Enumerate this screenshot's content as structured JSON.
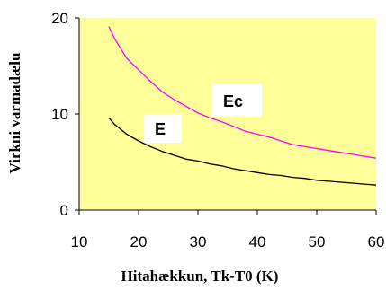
{
  "chart_data": {
    "type": "line",
    "title": "",
    "xlabel": "Hitahækkun, Tk-T0 (K)",
    "ylabel": "Virkni varmadælu",
    "xlim": [
      10,
      60
    ],
    "ylim": [
      0,
      20
    ],
    "xticks": [
      "10",
      "20",
      "30",
      "40",
      "50",
      "60"
    ],
    "yticks": [
      "0",
      "10",
      "20"
    ],
    "grid": false,
    "legend": "none",
    "colors": {
      "plot_background": "#ffff99",
      "label_box": "#ffffff"
    },
    "series": [
      {
        "name": "Ec",
        "color": "#ff00ff",
        "x": [
          15,
          16,
          18,
          20,
          22,
          24,
          26,
          28,
          30,
          32,
          34,
          36,
          38,
          40,
          42,
          44,
          46,
          48,
          50,
          52,
          54,
          56,
          58,
          60
        ],
        "y": [
          19.1,
          17.8,
          15.8,
          14.6,
          13.4,
          12.3,
          11.5,
          10.8,
          10.1,
          9.6,
          9.2,
          8.7,
          8.2,
          7.9,
          7.6,
          7.2,
          6.8,
          6.6,
          6.4,
          6.2,
          6.0,
          5.8,
          5.6,
          5.4
        ]
      },
      {
        "name": "E",
        "color": "#000000",
        "x": [
          15,
          16,
          18,
          20,
          22,
          24,
          26,
          28,
          30,
          32,
          34,
          36,
          38,
          40,
          42,
          44,
          46,
          48,
          50,
          52,
          54,
          56,
          58,
          60
        ],
        "y": [
          9.6,
          8.9,
          7.9,
          7.2,
          6.6,
          6.1,
          5.7,
          5.3,
          5.1,
          4.8,
          4.6,
          4.3,
          4.1,
          3.9,
          3.7,
          3.6,
          3.4,
          3.3,
          3.1,
          3.0,
          2.9,
          2.8,
          2.7,
          2.6
        ]
      }
    ]
  }
}
